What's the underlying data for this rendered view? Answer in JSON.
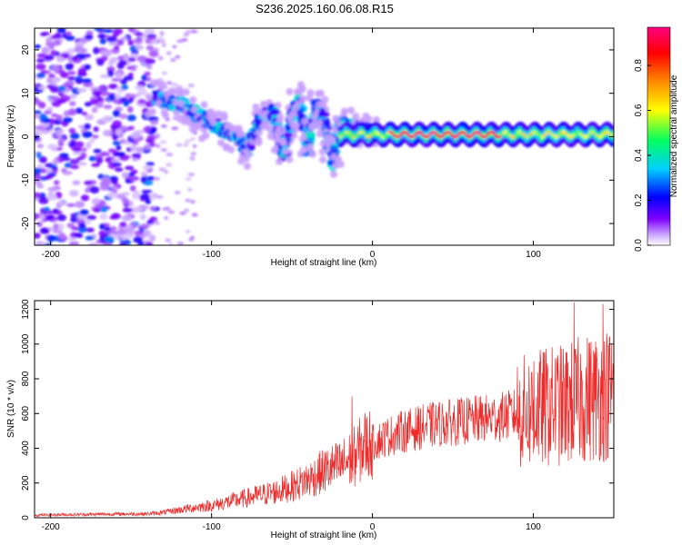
{
  "title": "S236.2025.160.06.08.R15",
  "chart_data": [
    {
      "type": "heatmap",
      "xlabel": "Height of straight line (km)",
      "ylabel": "Frequency (Hz)",
      "xlim": [
        -210,
        150
      ],
      "ylim": [
        -25,
        25
      ],
      "xticks": [
        -200,
        -100,
        0,
        100
      ],
      "yticks": [
        -20,
        -10,
        0,
        10,
        20
      ],
      "grid": false,
      "colorbar": {
        "label": "Normalized spectral amplitude",
        "range": [
          0,
          0.97
        ],
        "ticks": [
          "0.0",
          "0.2",
          "0.4",
          "0.6",
          "0.8"
        ],
        "tick_values": [
          0,
          0.2,
          0.4,
          0.6,
          0.8
        ],
        "colormap": "rainbow",
        "colors": [
          "#ffffff",
          "#c9a3ff",
          "#8000ff",
          "#0000ff",
          "#00d0ff",
          "#00ff60",
          "#ffff00",
          "#ff8000",
          "#ff0000",
          "#ff0080"
        ]
      },
      "features": [
        {
          "name": "noise",
          "x_range": [
            -210,
            -135
          ],
          "freq_range": [
            -25,
            25
          ],
          "amplitude": 0.15
        },
        {
          "name": "sparse",
          "x_range": [
            -135,
            -110
          ],
          "freq_range": [
            -25,
            25
          ],
          "amplitude": 0.05
        },
        {
          "name": "tracks",
          "points": [
            [
              -135,
              9
            ],
            [
              -125,
              8
            ],
            [
              -115,
              7
            ],
            [
              -105,
              4
            ],
            [
              -95,
              2
            ],
            [
              -85,
              0
            ],
            [
              -78,
              -3
            ],
            [
              -70,
              4
            ],
            [
              -62,
              6
            ],
            [
              -58,
              1
            ],
            [
              -55,
              -4
            ],
            [
              -50,
              5
            ],
            [
              -45,
              8
            ],
            [
              -40,
              -3
            ],
            [
              -35,
              7
            ],
            [
              -30,
              4
            ],
            [
              -25,
              -6
            ],
            [
              -20,
              3
            ],
            [
              -10,
              2
            ],
            [
              0,
              1
            ]
          ],
          "amplitude": 0.3
        },
        {
          "name": "carrier",
          "x_range": [
            -20,
            150
          ],
          "freq": 0.5,
          "amplitude": 0.9
        }
      ]
    },
    {
      "type": "line",
      "xlabel": "Height of straight line (km)",
      "ylabel": "SNR (10 * v/v)",
      "xlim": [
        -210,
        150
      ],
      "ylim": [
        0,
        1250
      ],
      "xticks": [
        -200,
        -100,
        0,
        100
      ],
      "yticks": [
        0,
        200,
        400,
        600,
        800,
        1000,
        1200
      ],
      "grid": false,
      "color": "#ee2a2a",
      "x": [
        -210,
        -190,
        -170,
        -150,
        -140,
        -130,
        -120,
        -110,
        -100,
        -90,
        -80,
        -70,
        -60,
        -50,
        -40,
        -30,
        -20,
        -15,
        -10,
        -5,
        0,
        10,
        20,
        30,
        40,
        50,
        60,
        70,
        80,
        90,
        100,
        110,
        120,
        130,
        140,
        150
      ],
      "y": [
        15,
        18,
        20,
        22,
        22,
        30,
        45,
        60,
        70,
        90,
        110,
        130,
        150,
        180,
        220,
        270,
        300,
        330,
        360,
        420,
        430,
        470,
        500,
        520,
        540,
        550,
        560,
        570,
        580,
        600,
        620,
        640,
        650,
        680,
        700,
        720
      ],
      "peaks": [
        [
          -13,
          700
        ],
        [
          125,
          1240
        ],
        [
          143,
          1230
        ],
        [
          150,
          1010
        ],
        [
          120,
          950
        ],
        [
          100,
          900
        ]
      ]
    }
  ]
}
